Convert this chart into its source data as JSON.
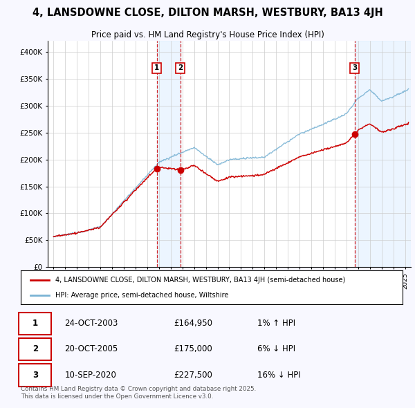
{
  "title": "4, LANSDOWNE CLOSE, DILTON MARSH, WESTBURY, BA13 4JH",
  "subtitle": "Price paid vs. HM Land Registry's House Price Index (HPI)",
  "legend_red": "4, LANSDOWNE CLOSE, DILTON MARSH, WESTBURY, BA13 4JH (semi-detached house)",
  "legend_blue": "HPI: Average price, semi-detached house, Wiltshire",
  "footnote": "Contains HM Land Registry data © Crown copyright and database right 2025.\nThis data is licensed under the Open Government Licence v3.0.",
  "sales": [
    {
      "num": 1,
      "date_label": "24-OCT-2003",
      "year": 2003.81,
      "price": 164950,
      "hpi_pct": "1% ↑ HPI"
    },
    {
      "num": 2,
      "date_label": "20-OCT-2005",
      "year": 2005.81,
      "price": 175000,
      "hpi_pct": "6% ↓ HPI"
    },
    {
      "num": 3,
      "date_label": "10-SEP-2020",
      "year": 2020.69,
      "price": 227500,
      "hpi_pct": "16% ↓ HPI"
    }
  ],
  "ylim": [
    0,
    420000
  ],
  "xlim": [
    1994.5,
    2025.5
  ],
  "yticks": [
    0,
    50000,
    100000,
    150000,
    200000,
    250000,
    300000,
    350000,
    400000
  ],
  "ytick_labels": [
    "£0",
    "£50K",
    "£100K",
    "£150K",
    "£200K",
    "£250K",
    "£300K",
    "£350K",
    "£400K"
  ],
  "plot_bg": "#ffffff",
  "fig_bg": "#f8f8ff",
  "grid_color": "#cccccc",
  "red_color": "#cc0000",
  "blue_color": "#7ab3d4",
  "shade_color": "#ddeeff",
  "shade_alpha": 0.55
}
